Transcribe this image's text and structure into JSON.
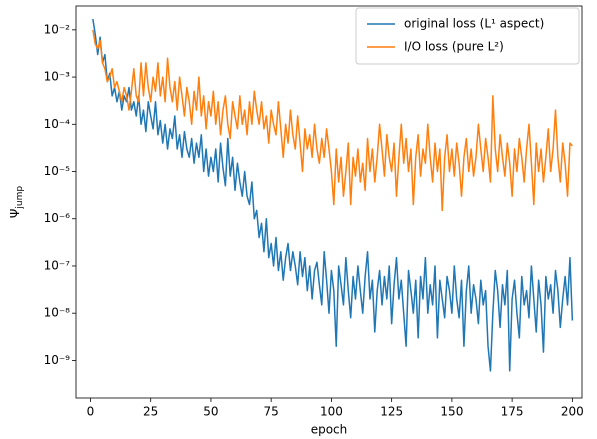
{
  "chart_data": {
    "type": "line",
    "xlabel": "epoch",
    "ylabel": {
      "symbol": "Ψ",
      "subscript": "jump"
    },
    "log_y": true,
    "legend": "upper right",
    "xlim": [
      -6,
      204
    ],
    "xticks": [
      0,
      25,
      50,
      75,
      100,
      125,
      150,
      175,
      200
    ],
    "ylim": [
      1.6e-10,
      0.032
    ],
    "yticks": [
      {
        "value": 1e-09,
        "label": "10⁻⁹"
      },
      {
        "value": 1e-08,
        "label": "10⁻⁸"
      },
      {
        "value": 1e-07,
        "label": "10⁻⁷"
      },
      {
        "value": 1e-06,
        "label": "10⁻⁶"
      },
      {
        "value": 1e-05,
        "label": "10⁻⁵"
      },
      {
        "value": 0.0001,
        "label": "10⁻⁴"
      },
      {
        "value": 0.001,
        "label": "10⁻³"
      },
      {
        "value": 0.01,
        "label": "10⁻²"
      }
    ],
    "x": [
      1,
      2,
      3,
      4,
      5,
      6,
      7,
      8,
      9,
      10,
      11,
      12,
      13,
      14,
      15,
      16,
      17,
      18,
      19,
      20,
      21,
      22,
      23,
      24,
      25,
      26,
      27,
      28,
      29,
      30,
      31,
      32,
      33,
      34,
      35,
      36,
      37,
      38,
      39,
      40,
      41,
      42,
      43,
      44,
      45,
      46,
      47,
      48,
      49,
      50,
      51,
      52,
      53,
      54,
      55,
      56,
      57,
      58,
      59,
      60,
      61,
      62,
      63,
      64,
      65,
      66,
      67,
      68,
      69,
      70,
      71,
      72,
      73,
      74,
      75,
      76,
      77,
      78,
      79,
      80,
      81,
      82,
      83,
      84,
      85,
      86,
      87,
      88,
      89,
      90,
      91,
      92,
      93,
      94,
      95,
      96,
      97,
      98,
      99,
      100,
      101,
      102,
      103,
      104,
      105,
      106,
      107,
      108,
      109,
      110,
      111,
      112,
      113,
      114,
      115,
      116,
      117,
      118,
      119,
      120,
      121,
      122,
      123,
      124,
      125,
      126,
      127,
      128,
      129,
      130,
      131,
      132,
      133,
      134,
      135,
      136,
      137,
      138,
      139,
      140,
      141,
      142,
      143,
      144,
      145,
      146,
      147,
      148,
      149,
      150,
      151,
      152,
      153,
      154,
      155,
      156,
      157,
      158,
      159,
      160,
      161,
      162,
      163,
      164,
      165,
      166,
      167,
      168,
      169,
      170,
      171,
      172,
      173,
      174,
      175,
      176,
      177,
      178,
      179,
      180,
      181,
      182,
      183,
      184,
      185,
      186,
      187,
      188,
      189,
      190,
      191,
      192,
      193,
      194,
      195,
      196,
      197,
      198,
      199,
      200
    ],
    "series": [
      {
        "name": "original loss (L¹ aspect)",
        "color": "#1f77b4",
        "values": [
          0.017,
          0.008,
          0.003,
          0.007,
          0.002,
          0.003,
          0.0008,
          0.0012,
          0.0004,
          0.0006,
          0.0003,
          0.0005,
          0.0002,
          0.0004,
          0.0003,
          0.0006,
          0.0002,
          0.0003,
          0.00015,
          0.0004,
          0.0001,
          0.0002,
          7e-05,
          0.0003,
          0.00015,
          8e-05,
          0.0003,
          6e-05,
          0.00012,
          4e-05,
          0.0001,
          3e-05,
          8e-05,
          5e-05,
          0.00015,
          3e-05,
          6e-05,
          2e-05,
          7e-05,
          3e-05,
          2e-05,
          5e-05,
          1.5e-05,
          4e-05,
          2e-05,
          6e-05,
          1e-05,
          3e-05,
          8e-06,
          2e-05,
          1e-05,
          3e-05,
          6e-06,
          4e-05,
          1.2e-05,
          5e-06,
          5e-05,
          8e-06,
          2e-05,
          4e-06,
          1.5e-05,
          6e-06,
          3e-06,
          1e-05,
          3e-06,
          2e-06,
          6e-06,
          1e-06,
          1.5e-06,
          4e-07,
          8e-07,
          2e-07,
          1e-06,
          1.5e-07,
          3e-07,
          1e-07,
          4e-07,
          8e-08,
          2e-07,
          5e-08,
          1.5e-07,
          3e-07,
          8e-08,
          2e-07,
          1e-07,
          4e-08,
          2e-07,
          6e-08,
          1.5e-07,
          3e-08,
          1e-07,
          2e-08,
          8e-08,
          1.2e-07,
          4e-08,
          1.5e-08,
          2e-07,
          5e-08,
          1e-08,
          8e-08,
          3e-08,
          2e-09,
          1e-07,
          4e-08,
          1.5e-08,
          1.5e-07,
          3e-08,
          8e-09,
          6e-08,
          2e-08,
          1e-07,
          3e-08,
          1e-08,
          6e-08,
          2e-07,
          2e-08,
          5e-08,
          4e-09,
          3e-08,
          8e-08,
          1.5e-08,
          6e-08,
          2e-08,
          1e-07,
          6e-09,
          4e-08,
          1.5e-07,
          2e-08,
          5e-08,
          1e-08,
          2e-09,
          8e-08,
          3e-08,
          1e-08,
          5e-08,
          3e-09,
          6e-08,
          2e-08,
          1.5e-07,
          1e-08,
          4e-08,
          1.5e-08,
          1e-07,
          3e-09,
          5e-08,
          2e-08,
          8e-09,
          6e-08,
          3e-08,
          1e-08,
          1e-07,
          2e-08,
          8e-09,
          5e-08,
          2e-09,
          3e-08,
          1e-07,
          1e-08,
          4e-08,
          2e-08,
          6e-09,
          5e-08,
          1.5e-08,
          3e-08,
          2e-09,
          6e-10,
          1e-08,
          8e-08,
          3e-08,
          5e-09,
          4e-08,
          1.5e-08,
          8e-08,
          6e-10,
          2e-08,
          5e-08,
          1e-08,
          3e-09,
          6e-08,
          1.5e-08,
          3e-08,
          8e-09,
          1e-07,
          2e-08,
          4e-09,
          5e-08,
          1.5e-08,
          1.5e-09,
          6e-08,
          2e-08,
          4e-08,
          1e-08,
          8e-08,
          3e-08,
          5e-09,
          2e-08,
          6e-08,
          1.5e-08,
          1.5e-07,
          7e-09
        ]
      },
      {
        "name": "I/O loss (pure L²)",
        "color": "#ff7f0e",
        "values": [
          0.01,
          0.005,
          0.004,
          0.006,
          0.002,
          0.0015,
          0.0008,
          0.001,
          0.0015,
          0.0006,
          0.0008,
          0.0005,
          0.0003,
          0.0006,
          0.0004,
          0.0002,
          0.0005,
          0.0015,
          0.0004,
          0.0003,
          0.002,
          0.0004,
          0.002,
          0.0006,
          0.0003,
          0.001,
          0.0005,
          0.002,
          0.0004,
          0.001,
          0.0003,
          0.0025,
          0.0006,
          0.0003,
          0.0008,
          0.0002,
          0.001,
          0.0004,
          0.00015,
          0.0006,
          0.0003,
          0.0001,
          0.0005,
          0.0002,
          0.001,
          0.00015,
          0.0004,
          8e-05,
          0.0003,
          0.00015,
          0.0005,
          0.0001,
          0.0003,
          6e-05,
          0.0002,
          0.0004,
          0.0001,
          5e-05,
          0.0003,
          0.00015,
          8e-05,
          0.0004,
          0.0001,
          0.0002,
          6e-05,
          0.0003,
          0.0001,
          0.0005,
          0.0002,
          0.0001,
          0.0003,
          8e-05,
          0.00015,
          4e-05,
          0.0002,
          0.0001,
          6e-05,
          0.0003,
          8e-05,
          2e-05,
          0.0001,
          4e-05,
          0.0002,
          6e-05,
          3e-05,
          0.00015,
          4e-05,
          1e-05,
          8e-05,
          3e-05,
          6e-05,
          2e-05,
          0.0001,
          3e-05,
          1.5e-05,
          5e-05,
          2e-05,
          8e-05,
          3e-05,
          1e-05,
          2e-06,
          3e-05,
          6e-06,
          2e-05,
          3e-06,
          1e-05,
          4e-05,
          2e-06,
          2e-05,
          8e-06,
          3e-05,
          6e-06,
          1.5e-05,
          4e-06,
          5e-05,
          1e-05,
          3e-05,
          6e-06,
          2e-05,
          0.0001,
          3e-05,
          8e-06,
          6e-05,
          2e-05,
          1e-05,
          4e-05,
          3e-06,
          2e-05,
          0.0001,
          1.5e-05,
          5e-05,
          1e-05,
          3e-05,
          2e-06,
          2e-05,
          6e-05,
          8e-06,
          3e-05,
          1.5e-05,
          0.0001,
          2e-05,
          6e-06,
          4e-05,
          1e-05,
          3e-05,
          1.5e-06,
          2e-05,
          6e-05,
          1e-05,
          3e-05,
          8e-06,
          4e-05,
          1.5e-05,
          3e-06,
          2e-05,
          5e-05,
          1e-05,
          3e-05,
          8e-06,
          2e-05,
          0.0001,
          3e-05,
          1e-05,
          5e-05,
          2e-05,
          6e-06,
          0.0004,
          3e-05,
          1e-05,
          6e-05,
          2e-05,
          8e-06,
          4e-05,
          1.5e-05,
          3e-06,
          3e-05,
          1e-05,
          5e-05,
          2e-05,
          6e-06,
          3e-05,
          0.0001,
          1.5e-05,
          2e-06,
          4e-05,
          1e-05,
          3e-05,
          6e-06,
          2e-05,
          8e-05,
          1e-05,
          3e-05,
          0.0002,
          2e-05,
          6e-06,
          4e-05,
          1.5e-05,
          3e-06,
          4e-05,
          3.5e-05
        ]
      }
    ]
  }
}
